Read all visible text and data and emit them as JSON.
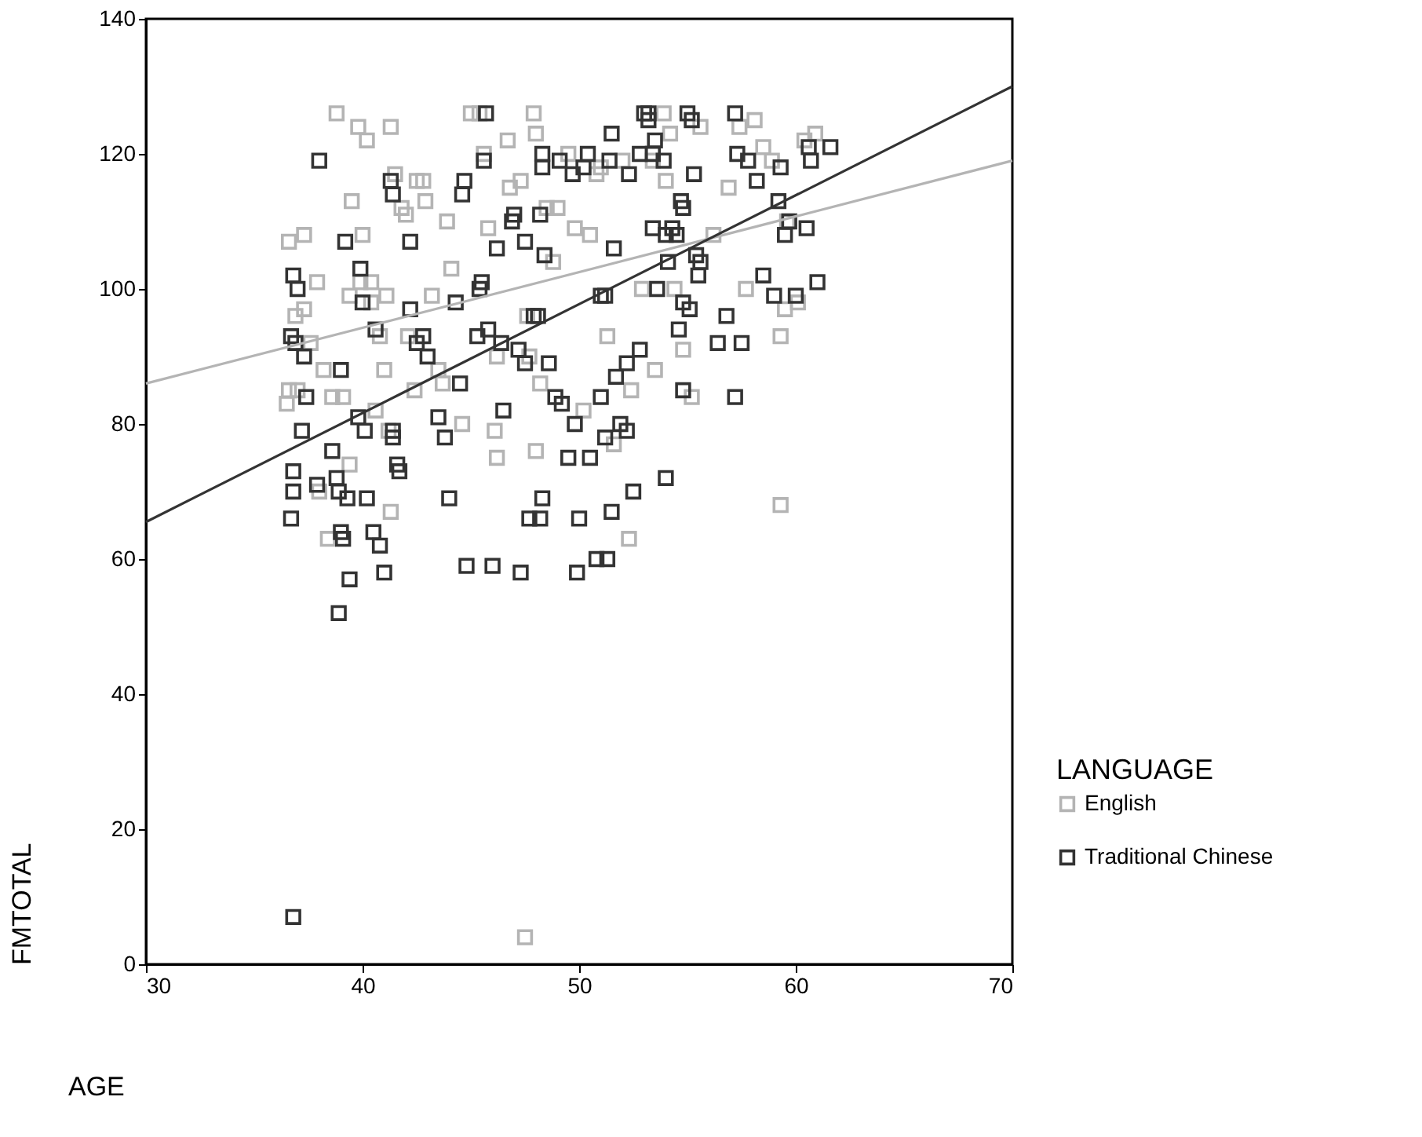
{
  "chart_data": {
    "type": "scatter",
    "xlabel": "AGE",
    "ylabel": "FMTOTAL",
    "legend_title": "LANGUAGE",
    "legend": "right",
    "grid": false,
    "marker": "square",
    "xlim": [
      30,
      70
    ],
    "xticks": [
      30,
      40,
      50,
      60,
      70
    ],
    "ylim": [
      0,
      140
    ],
    "yticks": [
      0,
      20,
      40,
      60,
      80,
      100,
      120,
      140
    ],
    "series": [
      {
        "name": "English",
        "color": "#b4b4b4",
        "x": [
          36.5,
          36.6,
          36.6,
          36.9,
          37.0,
          37.3,
          37.6,
          37.9,
          37.3,
          38.0,
          38.2,
          38.4,
          38.6,
          38.8,
          39.1,
          39.4,
          39.5,
          39.4,
          39.8,
          39.9,
          40.0,
          40.2,
          40.4,
          40.4,
          40.6,
          40.8,
          41.1,
          41.2,
          41.0,
          41.3,
          41.3,
          41.5,
          41.8,
          42.0,
          42.1,
          42.4,
          42.5,
          42.8,
          42.9,
          43.2,
          43.5,
          43.7,
          43.9,
          44.1,
          44.6,
          44.8,
          45.0,
          45.4,
          45.6,
          45.8,
          46.1,
          46.2,
          46.2,
          46.7,
          46.8,
          47.3,
          47.6,
          47.7,
          47.9,
          48.0,
          48.2,
          48.0,
          48.5,
          48.8,
          49.0,
          49.5,
          49.8,
          50.2,
          50.5,
          50.8,
          51.0,
          51.3,
          51.6,
          52.0,
          52.3,
          52.4,
          52.9,
          53.5,
          53.4,
          53.9,
          54.0,
          54.2,
          54.4,
          54.8,
          55.2,
          55.6,
          56.2,
          56.9,
          57.4,
          57.7,
          58.1,
          58.5,
          58.9,
          59.3,
          59.3,
          59.5,
          59.6,
          60.1,
          60.4,
          60.9,
          47.5
        ],
        "values": [
          83,
          85,
          107,
          96,
          85,
          108,
          92,
          101,
          97,
          70,
          88,
          63,
          84,
          126,
          84,
          74,
          113,
          99,
          124,
          101,
          108,
          122,
          101,
          98,
          82,
          93,
          99,
          79,
          88,
          67,
          124,
          117,
          112,
          111,
          93,
          85,
          116,
          116,
          113,
          99,
          88,
          86,
          110,
          103,
          80,
          null,
          126,
          126,
          120,
          109,
          79,
          75,
          90,
          122,
          115,
          116,
          96,
          90,
          126,
          76,
          86,
          123,
          112,
          104,
          112,
          120,
          109,
          82,
          108,
          117,
          118,
          93,
          77,
          119,
          63,
          85,
          100,
          88,
          119,
          126,
          116,
          123,
          100,
          91,
          84,
          124,
          108,
          115,
          124,
          100,
          125,
          121,
          119,
          93,
          68,
          97,
          110,
          98,
          122,
          123,
          4
        ]
      },
      {
        "name": "Traditional Chinese",
        "color": "#333333",
        "x": [
          36.7,
          36.9,
          36.8,
          37.0,
          37.3,
          37.4,
          36.8,
          36.8,
          36.7,
          37.9,
          38.0,
          37.2,
          36.8,
          38.8,
          38.6,
          39.0,
          39.1,
          38.9,
          39.3,
          39.0,
          39.2,
          39.4,
          38.9,
          39.8,
          39.9,
          40.0,
          40.1,
          40.2,
          40.5,
          40.8,
          41.0,
          40.6,
          41.4,
          41.4,
          41.6,
          41.7,
          41.3,
          41.4,
          42.2,
          42.2,
          42.8,
          42.5,
          43.0,
          43.5,
          43.8,
          44.0,
          44.3,
          44.5,
          44.8,
          44.6,
          44.7,
          45.3,
          45.4,
          45.5,
          45.7,
          45.6,
          45.8,
          46.0,
          46.2,
          46.4,
          46.5,
          46.9,
          47.0,
          47.2,
          47.5,
          47.3,
          47.5,
          47.7,
          47.9,
          48.1,
          48.2,
          48.3,
          48.4,
          48.3,
          48.3,
          48.2,
          48.6,
          48.9,
          49.2,
          49.1,
          49.5,
          49.7,
          49.8,
          49.9,
          50.0,
          50.2,
          50.4,
          50.5,
          50.8,
          51.0,
          51.3,
          51.0,
          51.2,
          51.2,
          51.4,
          51.5,
          51.5,
          51.6,
          51.7,
          51.9,
          52.2,
          52.2,
          52.3,
          52.5,
          52.8,
          52.8,
          53.0,
          53.2,
          53.2,
          53.4,
          53.4,
          53.5,
          53.6,
          53.9,
          54.0,
          54.0,
          54.1,
          54.3,
          54.5,
          54.7,
          54.8,
          54.8,
          54.6,
          54.8,
          55.0,
          55.2,
          55.3,
          55.4,
          55.1,
          55.5,
          55.6,
          56.4,
          56.8,
          57.2,
          57.2,
          57.3,
          57.5,
          57.8,
          58.2,
          58.5,
          59.0,
          59.2,
          59.3,
          59.5,
          59.7,
          60.0,
          60.5,
          60.6,
          60.7,
          61.0,
          61.6
        ],
        "values": [
          93,
          92,
          102,
          100,
          90,
          84,
          73,
          70,
          66,
          71,
          119,
          79,
          7,
          72,
          76,
          64,
          63,
          70,
          69,
          88,
          107,
          57,
          52,
          81,
          103,
          98,
          79,
          69,
          64,
          62,
          58,
          94,
          78,
          79,
          74,
          73,
          116,
          114,
          107,
          97,
          93,
          92,
          90,
          81,
          78,
          69,
          98,
          86,
          59,
          114,
          116,
          93,
          100,
          101,
          126,
          119,
          94,
          59,
          106,
          92,
          82,
          110,
          111,
          91,
          89,
          58,
          107,
          66,
          96,
          96,
          66,
          69,
          105,
          120,
          118,
          111,
          89,
          84,
          83,
          119,
          75,
          117,
          80,
          58,
          66,
          118,
          120,
          75,
          60,
          84,
          60,
          99,
          99,
          78,
          119,
          123,
          67,
          106,
          87,
          80,
          79,
          89,
          117,
          70,
          120,
          91,
          126,
          126,
          125,
          120,
          109,
          122,
          100,
          119,
          72,
          108,
          104,
          109,
          108,
          113,
          112,
          98,
          94,
          85,
          126,
          125,
          117,
          105,
          97,
          102,
          104,
          92,
          96,
          84,
          126,
          120,
          92,
          119,
          116,
          102,
          99,
          113,
          118,
          108,
          110,
          99,
          109,
          121,
          119,
          101,
          121
        ]
      },
      {
        "type": "line",
        "color": "#b4b4b4",
        "marker": "none",
        "line_style": "solid",
        "x": [
          30,
          70
        ],
        "values": [
          86,
          119
        ]
      },
      {
        "type": "line",
        "color": "#333333",
        "marker": "none",
        "line_style": "solid",
        "x": [
          30,
          70
        ],
        "values": [
          65.5,
          130
        ]
      }
    ]
  }
}
